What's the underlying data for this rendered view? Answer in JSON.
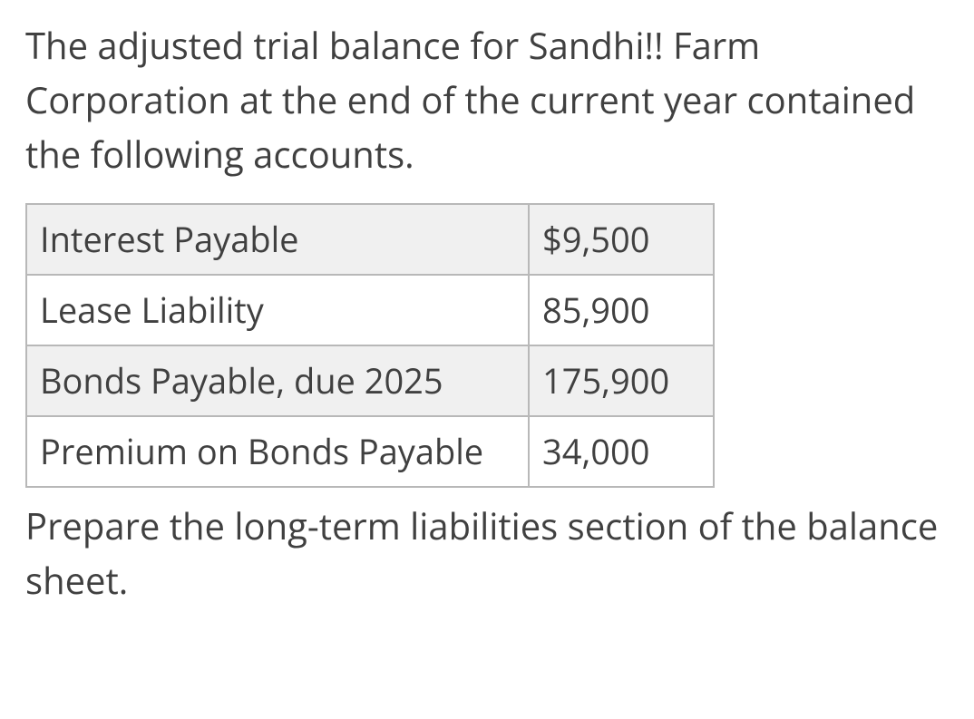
{
  "intro_text": "The adjusted trial balance for Sandhi!! Farm Corporation at the end of the current year contained the following accounts.",
  "instruction_text": "Prepare the long-term liabilities section of the balance sheet.",
  "table": {
    "text_color": "#404040",
    "border_color": "#b8b8b8",
    "shaded_bg": "#f0f0f0",
    "plain_bg": "#ffffff",
    "cell_fontsize": 38,
    "rows": [
      {
        "account": "Interest Payable",
        "value": "$9,500",
        "shaded": true
      },
      {
        "account": "Lease Liability",
        "value": "85,900",
        "shaded": false
      },
      {
        "account": "Bonds Payable, due 2025",
        "value": "175,900",
        "shaded": true
      },
      {
        "account": "Premium on Bonds Payable",
        "value": "34,000",
        "shaded": false
      }
    ]
  }
}
